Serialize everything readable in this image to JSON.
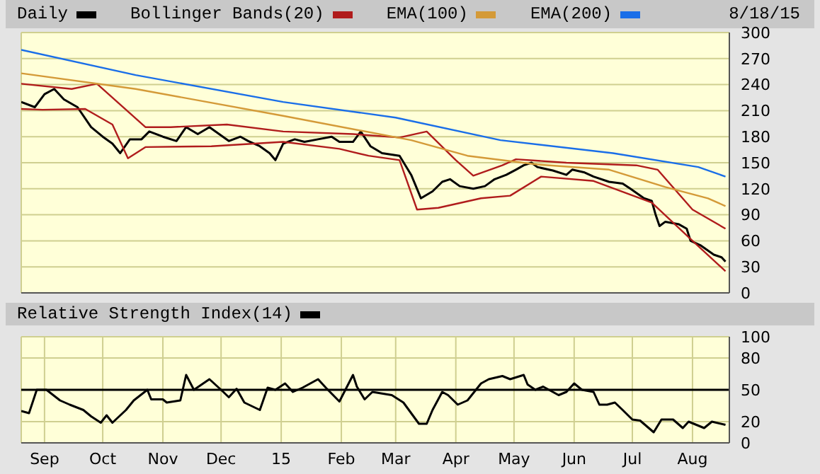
{
  "chart_data": [
    {
      "type": "line",
      "legend": "top",
      "grid": true,
      "marker": "none",
      "line_style": "solid",
      "tick_labels": "y",
      "annotations": [
        "8/18/15"
      ],
      "xlim": [
        "2014-08-20",
        "2015-08-20"
      ],
      "xticks": [
        {
          "value": "2014-09-01",
          "label": null
        },
        {
          "value": "2014-10-01",
          "label": null
        },
        {
          "value": "2014-11-01",
          "label": null
        },
        {
          "value": "2014-12-01",
          "label": null
        },
        {
          "value": "2015-01-01",
          "label": null
        },
        {
          "value": "2015-02-01",
          "label": null
        },
        {
          "value": "2015-03-01",
          "label": null
        },
        {
          "value": "2015-04-01",
          "label": null
        },
        {
          "value": "2015-05-01",
          "label": null
        },
        {
          "value": "2015-06-01",
          "label": null
        },
        {
          "value": "2015-07-01",
          "label": null
        },
        {
          "value": "2015-08-01",
          "label": null
        }
      ],
      "ylim": [
        0,
        300
      ],
      "yticks": [
        0,
        30,
        60,
        90,
        120,
        150,
        180,
        210,
        240,
        270,
        300
      ],
      "series": [
        {
          "name": "Daily",
          "color": "#000000",
          "x": [
            "2014-08-20",
            "2014-08-27",
            "2014-09-01",
            "2014-09-06",
            "2014-09-11",
            "2014-09-18",
            "2014-09-25",
            "2014-10-01",
            "2014-10-06",
            "2014-10-10",
            "2014-10-15",
            "2014-10-21",
            "2014-10-25",
            "2014-11-01",
            "2014-11-08",
            "2014-11-13",
            "2014-11-19",
            "2014-11-25",
            "2014-11-30",
            "2014-12-05",
            "2014-12-11",
            "2014-12-15",
            "2014-12-21",
            "2014-12-26",
            "2014-12-29",
            "2015-01-02",
            "2015-01-08",
            "2015-01-13",
            "2015-01-20",
            "2015-01-27",
            "2015-01-31",
            "2015-02-07",
            "2015-02-11",
            "2015-02-16",
            "2015-02-22",
            "2015-03-03",
            "2015-03-09",
            "2015-03-12",
            "2015-03-14",
            "2015-03-20",
            "2015-03-25",
            "2015-03-29",
            "2015-04-03",
            "2015-04-10",
            "2015-04-16",
            "2015-04-21",
            "2015-04-27",
            "2015-05-02",
            "2015-05-06",
            "2015-05-10",
            "2015-05-13",
            "2015-05-21",
            "2015-05-28",
            "2015-05-31",
            "2015-06-06",
            "2015-06-11",
            "2015-06-19",
            "2015-06-26",
            "2015-06-30",
            "2015-07-07",
            "2015-07-11",
            "2015-07-13",
            "2015-07-15",
            "2015-07-18",
            "2015-07-25",
            "2015-07-29",
            "2015-07-31",
            "2015-08-05",
            "2015-08-12",
            "2015-08-16",
            "2015-08-18"
          ],
          "values": [
            220,
            214,
            229,
            235,
            223,
            214,
            191,
            180,
            172,
            161,
            177,
            177,
            186,
            180,
            175,
            191,
            183,
            191,
            183,
            175,
            180,
            175,
            169,
            161,
            153,
            172,
            177,
            174,
            177,
            180,
            174,
            174,
            186,
            169,
            161,
            158,
            136,
            120,
            109,
            117,
            128,
            131,
            123,
            120,
            123,
            131,
            136,
            142,
            147,
            150,
            145,
            141,
            136,
            142,
            139,
            134,
            128,
            126,
            120,
            109,
            106,
            90,
            77,
            82,
            79,
            74,
            60,
            55,
            44,
            41,
            36
          ]
        },
        {
          "name": "Bollinger Bands(20)",
          "color": "#b01c1c",
          "x": [
            "2014-08-20",
            "2014-09-15",
            "2014-09-28",
            "2014-10-23",
            "2014-11-05",
            "2014-12-04",
            "2015-01-02",
            "2015-02-07",
            "2015-03-03",
            "2015-03-17",
            "2015-04-01",
            "2015-04-10",
            "2015-04-25",
            "2015-05-02",
            "2015-05-28",
            "2015-07-03",
            "2015-07-14",
            "2015-08-01",
            "2015-08-18"
          ],
          "values": [
            241,
            235,
            241,
            191,
            191,
            194,
            186,
            183,
            179,
            186,
            153,
            135,
            147,
            154,
            150,
            147,
            142,
            96,
            74
          ]
        },
        {
          "color": "#b01c1c",
          "x": [
            "2014-08-20",
            "2014-08-31",
            "2014-09-22",
            "2014-10-06",
            "2014-10-14",
            "2014-10-23",
            "2014-11-26",
            "2015-01-02",
            "2015-01-31",
            "2015-02-15",
            "2015-03-03",
            "2015-03-12",
            "2015-03-23",
            "2015-04-14",
            "2015-04-29",
            "2015-05-15",
            "2015-06-11",
            "2015-07-11",
            "2015-08-01",
            "2015-08-18"
          ],
          "values": [
            212,
            211,
            212,
            194,
            155,
            168,
            169,
            174,
            166,
            158,
            153,
            96,
            98,
            109,
            112,
            134,
            129,
            104,
            60,
            25
          ]
        },
        {
          "name": "EMA(100)",
          "color": "#d49a38",
          "x": [
            "2014-08-20",
            "2014-10-18",
            "2015-01-02",
            "2015-03-09",
            "2015-04-07",
            "2015-05-13",
            "2015-06-19",
            "2015-07-18",
            "2015-08-09",
            "2015-08-18"
          ],
          "values": [
            253,
            235,
            204,
            176,
            158,
            148,
            142,
            122,
            109,
            100
          ]
        },
        {
          "name": "EMA(200)",
          "color": "#1a6ee8",
          "x": [
            "2014-08-20",
            "2014-10-18",
            "2015-01-02",
            "2015-03-01",
            "2015-04-24",
            "2015-06-21",
            "2015-08-04",
            "2015-08-18"
          ],
          "values": [
            280,
            251,
            220,
            202,
            176,
            161,
            145,
            134
          ]
        }
      ]
    },
    {
      "type": "line",
      "legend": "top",
      "grid": true,
      "marker": "none",
      "line_style": "solid",
      "xlim": [
        "2014-08-20",
        "2015-08-20"
      ],
      "xticks": [
        {
          "value": "2014-09-01",
          "label": "Sep"
        },
        {
          "value": "2014-10-01",
          "label": "Oct"
        },
        {
          "value": "2014-11-01",
          "label": "Nov"
        },
        {
          "value": "2014-12-01",
          "label": "Dec"
        },
        {
          "value": "2015-01-01",
          "label": "15"
        },
        {
          "value": "2015-02-01",
          "label": "Feb"
        },
        {
          "value": "2015-03-01",
          "label": "Mar"
        },
        {
          "value": "2015-04-01",
          "label": "Apr"
        },
        {
          "value": "2015-05-01",
          "label": "May"
        },
        {
          "value": "2015-06-01",
          "label": "Jun"
        },
        {
          "value": "2015-07-01",
          "label": "Jul"
        },
        {
          "value": "2015-08-01",
          "label": "Aug"
        }
      ],
      "ylim": [
        0,
        100
      ],
      "yticks": [
        0,
        20,
        50,
        80,
        100
      ],
      "ref_lines": [
        {
          "axis": "y",
          "value": 50,
          "color": "#000000"
        }
      ],
      "series": [
        {
          "name": "Relative Strength Index(14)",
          "color": "#000000",
          "x": [
            "2014-08-20",
            "2014-08-24",
            "2014-08-28",
            "2014-09-02",
            "2014-09-09",
            "2014-09-14",
            "2014-09-21",
            "2014-09-25",
            "2014-09-30",
            "2014-10-03",
            "2014-10-06",
            "2014-10-13",
            "2014-10-17",
            "2014-10-24",
            "2014-10-26",
            "2014-11-01",
            "2014-11-03",
            "2014-11-10",
            "2014-11-13",
            "2014-11-17",
            "2014-11-21",
            "2014-11-25",
            "2014-12-01",
            "2014-12-05",
            "2014-12-09",
            "2014-12-13",
            "2014-12-21",
            "2014-12-25",
            "2014-12-29",
            "2015-01-03",
            "2015-01-07",
            "2015-01-12",
            "2015-01-20",
            "2015-01-24",
            "2015-01-31",
            "2015-02-07",
            "2015-02-09",
            "2015-02-13",
            "2015-02-17",
            "2015-02-27",
            "2015-03-05",
            "2015-03-13",
            "2015-03-17",
            "2015-03-20",
            "2015-03-25",
            "2015-03-28",
            "2015-04-02",
            "2015-04-07",
            "2015-04-14",
            "2015-04-18",
            "2015-04-25",
            "2015-04-29",
            "2015-05-06",
            "2015-05-08",
            "2015-05-12",
            "2015-05-16",
            "2015-05-24",
            "2015-05-28",
            "2015-06-01",
            "2015-06-05",
            "2015-06-11",
            "2015-06-14",
            "2015-06-18",
            "2015-06-22",
            "2015-06-26",
            "2015-07-01",
            "2015-07-05",
            "2015-07-12",
            "2015-07-16",
            "2015-07-22",
            "2015-07-27",
            "2015-07-30",
            "2015-08-07",
            "2015-08-11",
            "2015-08-18"
          ],
          "values": [
            30,
            28,
            50,
            50,
            40,
            36,
            31,
            25,
            19,
            26,
            19,
            31,
            40,
            50,
            41,
            41,
            38,
            40,
            64,
            50,
            55,
            60,
            50,
            43,
            51,
            38,
            31,
            52,
            50,
            56,
            48,
            52,
            60,
            52,
            39,
            64,
            53,
            41,
            48,
            45,
            38,
            18,
            18,
            31,
            48,
            45,
            36,
            40,
            56,
            60,
            63,
            60,
            64,
            55,
            50,
            53,
            45,
            48,
            56,
            50,
            48,
            36,
            36,
            38,
            31,
            22,
            21,
            10,
            22,
            22,
            14,
            20,
            14,
            20,
            17
          ]
        }
      ]
    }
  ]
}
